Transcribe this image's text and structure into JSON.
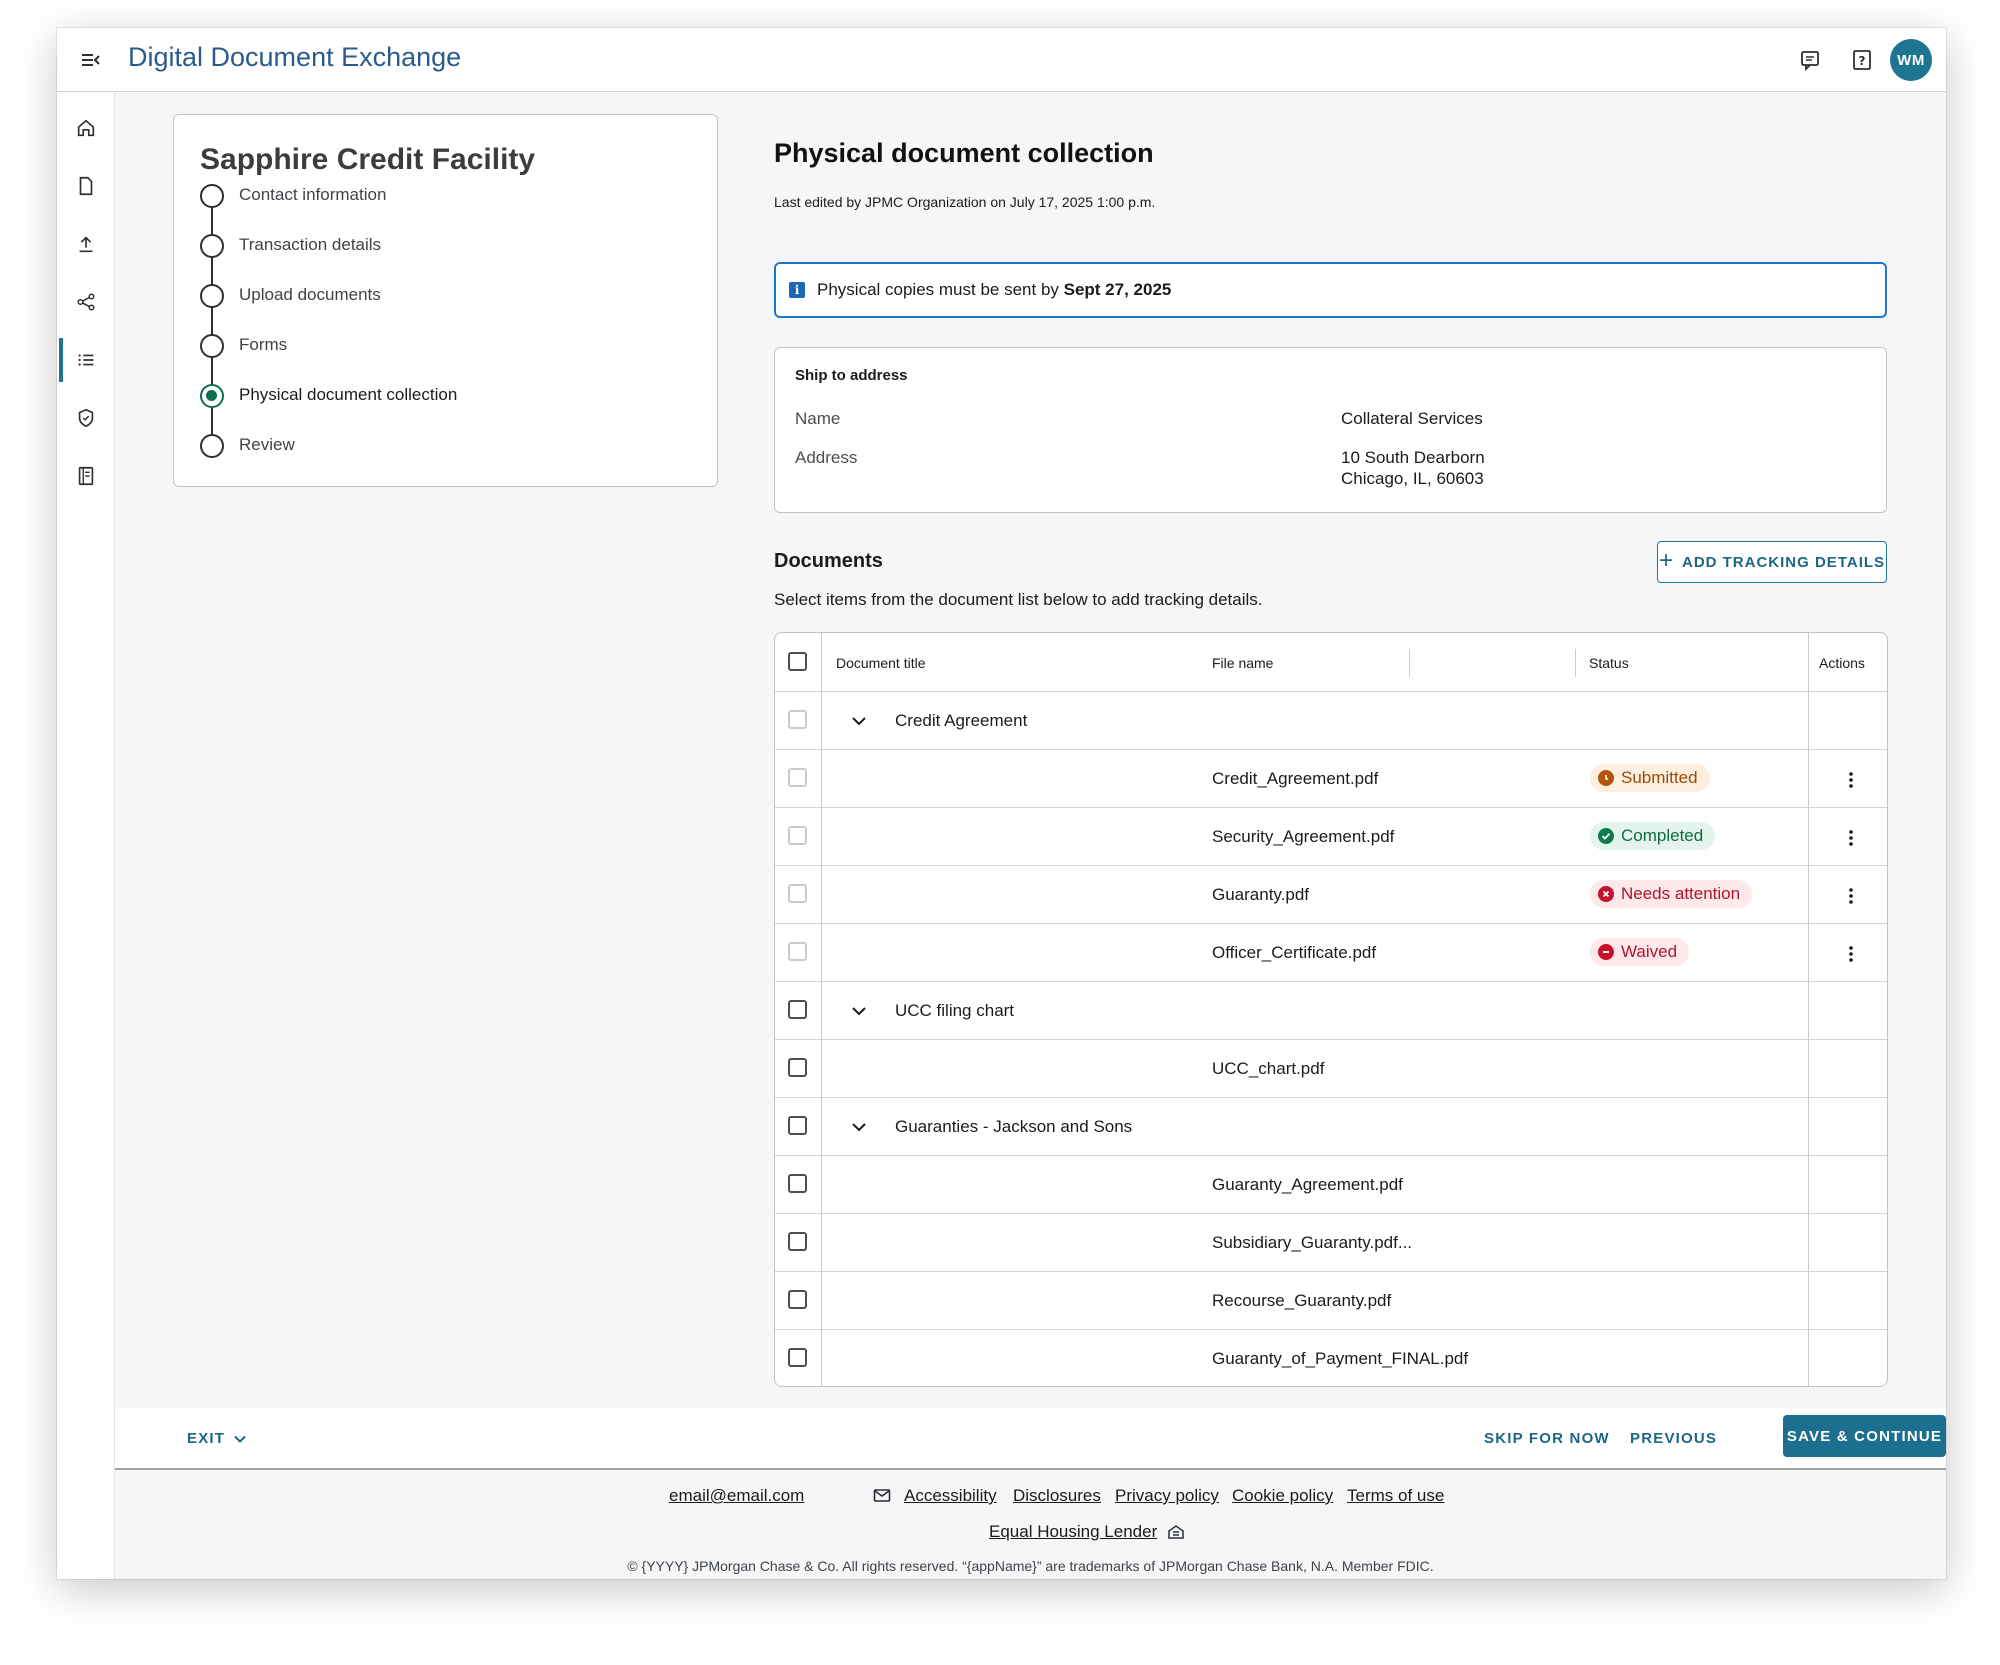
{
  "header": {
    "app_title": "Digital Document Exchange",
    "avatar_initials": "WM",
    "icons": [
      "menu-collapse-icon",
      "chat-icon",
      "help-icon"
    ]
  },
  "rail": {
    "items": [
      "home-icon",
      "document-icon",
      "upload-icon",
      "share-icon",
      "list-icon",
      "shield-icon",
      "ledger-icon"
    ],
    "active_index": 4,
    "accent_color": "#1d7591"
  },
  "stepper": {
    "title": "Sapphire Credit Facility",
    "steps": [
      {
        "label": "Contact information"
      },
      {
        "label": "Transaction details"
      },
      {
        "label": "Upload documents"
      },
      {
        "label": "Forms"
      },
      {
        "label": "Physical document collection"
      },
      {
        "label": "Review"
      }
    ],
    "active_step": 4,
    "active_color": "#0b6e4f"
  },
  "main": {
    "title": "Physical document collection",
    "last_edited": "Last edited by JPMC Organization on July 17, 2025 1:00 p.m.",
    "banner": {
      "icon": "info-icon",
      "text_prefix": "Physical copies must be sent by ",
      "text_bold": "Sept 27, 2025"
    },
    "ship": {
      "title": "Ship to address",
      "name_label": "Name",
      "name_value": "Collateral Services",
      "address_label": "Address",
      "address_line1": "10 South Dearborn",
      "address_line2": "Chicago, IL, 60603"
    },
    "documents": {
      "title": "Documents",
      "description": "Select items from the document list below to add tracking details.",
      "add_tracking_label": "ADD TRACKING DETAILS"
    }
  },
  "table": {
    "headers": {
      "document_title": "Document title",
      "file_name": "File name",
      "status": "Status",
      "actions": "Actions"
    },
    "rows": [
      {
        "type": "group",
        "label": "Credit Agreement",
        "disabled": true
      },
      {
        "type": "file",
        "file": "Credit_Agreement.pdf",
        "status": "Submitted",
        "disabled": true
      },
      {
        "type": "file",
        "file": "Security_Agreement.pdf",
        "status": "Completed",
        "disabled": true
      },
      {
        "type": "file",
        "file": "Guaranty.pdf",
        "status": "Needs attention",
        "disabled": true
      },
      {
        "type": "file",
        "file": "Officer_Certificate.pdf",
        "status": "Waived",
        "disabled": true
      },
      {
        "type": "group",
        "label": "UCC filing chart",
        "disabled": false
      },
      {
        "type": "file",
        "file": "UCC_chart.pdf",
        "status": "",
        "disabled": false
      },
      {
        "type": "group",
        "label": "Guaranties - Jackson and Sons",
        "disabled": false
      },
      {
        "type": "file",
        "file": "Guaranty_Agreement.pdf",
        "status": "",
        "disabled": false
      },
      {
        "type": "file",
        "file": "Subsidiary_Guaranty.pdf...",
        "status": "",
        "disabled": false
      },
      {
        "type": "file",
        "file": "Recourse_Guaranty.pdf",
        "status": "",
        "disabled": false
      },
      {
        "type": "file",
        "file": "Guaranty_of_Payment_FINAL.pdf",
        "status": "",
        "disabled": false
      }
    ],
    "status_styles": {
      "Submitted": {
        "bg": "#fdeee0",
        "fg": "#9a4a06",
        "dot": "#b45309",
        "icon": "clock-icon"
      },
      "Completed": {
        "bg": "#e4f4ec",
        "fg": "#0f6b48",
        "dot": "#0f7a51",
        "icon": "check-icon"
      },
      "Needs attention": {
        "bg": "#fde8ea",
        "fg": "#b3142a",
        "dot": "#c8102e",
        "icon": "error-icon"
      },
      "Waived": {
        "bg": "#fde8ea",
        "fg": "#b3142a",
        "dot": "#c8102e",
        "icon": "minus-icon"
      }
    }
  },
  "actionbar": {
    "exit_label": "EXIT",
    "skip_label": "SKIP FOR NOW",
    "previous_label": "PREVIOUS",
    "save_label": "SAVE & CONTINUE"
  },
  "footer": {
    "email": "email@email.com",
    "links": [
      "Accessibility",
      "Disclosures",
      "Privacy policy",
      "Cookie policy",
      "Terms of use"
    ],
    "equal_housing": "Equal Housing Lender",
    "copyright": "© {YYYY} JPMorgan Chase & Co. All rights reserved. “{appName}” are trademarks of JPMorgan Chase Bank, N.A. Member FDIC."
  }
}
